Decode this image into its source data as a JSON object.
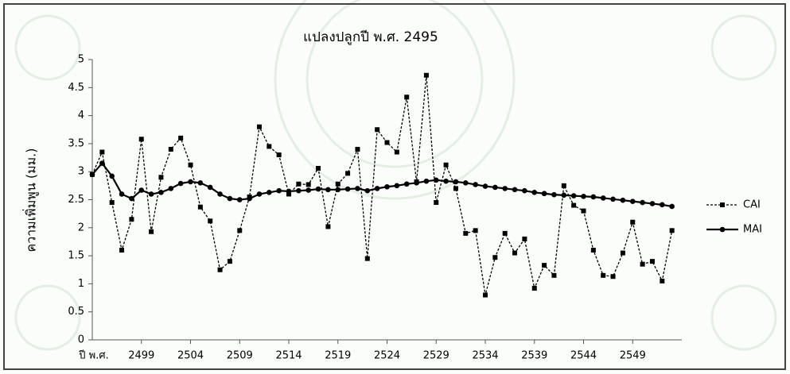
{
  "chart_data": {
    "type": "line",
    "title": "แปลงปลูกปี พ.ศ. 2495",
    "xlabel": "ปี พ.ศ.",
    "ylabel": "ความเพิ่มพูน (มม.)",
    "x": [
      2494,
      2495,
      2496,
      2497,
      2498,
      2499,
      2500,
      2501,
      2502,
      2503,
      2504,
      2505,
      2506,
      2507,
      2508,
      2509,
      2510,
      2511,
      2512,
      2513,
      2514,
      2515,
      2516,
      2517,
      2518,
      2519,
      2520,
      2521,
      2522,
      2523,
      2524,
      2525,
      2526,
      2527,
      2528,
      2529,
      2530,
      2531,
      2532,
      2533,
      2534,
      2535,
      2536,
      2537,
      2538,
      2539,
      2540,
      2541,
      2542,
      2543,
      2544,
      2545,
      2546,
      2547,
      2548,
      2549,
      2550,
      2551,
      2552,
      2553
    ],
    "series": [
      {
        "name": "CAI",
        "color": "#000000",
        "style": "dashed",
        "marker": "square",
        "values": [
          2.95,
          3.35,
          2.45,
          1.6,
          2.15,
          3.58,
          1.93,
          2.9,
          3.4,
          3.6,
          3.12,
          2.37,
          2.12,
          1.25,
          1.4,
          1.95,
          2.55,
          3.8,
          3.45,
          3.3,
          2.6,
          2.78,
          2.77,
          3.06,
          2.02,
          2.78,
          2.97,
          3.4,
          1.45,
          3.75,
          3.52,
          3.35,
          4.33,
          2.82,
          4.72,
          2.45,
          3.12,
          2.7,
          1.9,
          1.95,
          0.8,
          1.47,
          1.9,
          1.55,
          1.8,
          0.92,
          1.33,
          1.15,
          2.75,
          2.4,
          2.3,
          1.6,
          1.15,
          1.13,
          1.55,
          2.1,
          1.35,
          1.4,
          1.05,
          1.95
        ]
      },
      {
        "name": "MAI",
        "color": "#000000",
        "style": "solid",
        "marker": "circle",
        "values": [
          2.95,
          3.15,
          2.92,
          2.6,
          2.52,
          2.67,
          2.6,
          2.63,
          2.7,
          2.79,
          2.82,
          2.8,
          2.72,
          2.6,
          2.52,
          2.5,
          2.52,
          2.6,
          2.63,
          2.66,
          2.65,
          2.66,
          2.67,
          2.69,
          2.68,
          2.68,
          2.69,
          2.7,
          2.66,
          2.7,
          2.73,
          2.75,
          2.78,
          2.8,
          2.83,
          2.85,
          2.83,
          2.82,
          2.8,
          2.77,
          2.74,
          2.72,
          2.7,
          2.68,
          2.66,
          2.63,
          2.61,
          2.59,
          2.58,
          2.57,
          2.56,
          2.55,
          2.53,
          2.51,
          2.49,
          2.47,
          2.45,
          2.43,
          2.41,
          2.38
        ]
      }
    ],
    "xlim": [
      2494,
      2554
    ],
    "xticks": [
      2499,
      2504,
      2509,
      2514,
      2519,
      2524,
      2529,
      2534,
      2539,
      2544,
      2549
    ],
    "ylim": [
      0,
      5
    ],
    "yticks": [
      0,
      0.5,
      1,
      1.5,
      2,
      2.5,
      3,
      3.5,
      4,
      4.5,
      5
    ],
    "legend": "right"
  }
}
